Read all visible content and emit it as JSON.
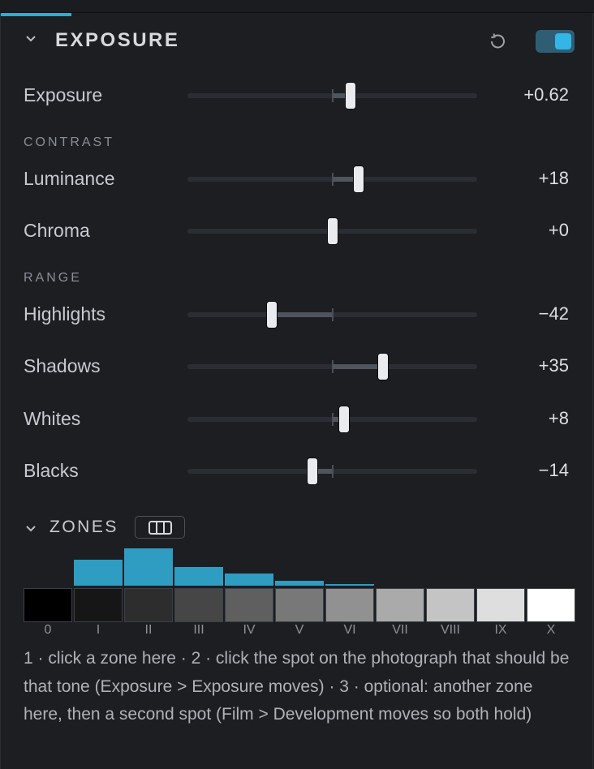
{
  "header": {
    "title": "EXPOSURE",
    "reset_icon": "reset-icon",
    "toggle_on": true,
    "accent": "#33b6e6"
  },
  "groups": {
    "contrast": "CONTRAST",
    "range": "RANGE"
  },
  "sliders": {
    "exposure": {
      "label": "Exposure",
      "value": "+0.62",
      "position": 0.562
    },
    "luminance": {
      "label": "Luminance",
      "value": "+18",
      "position": 0.59
    },
    "chroma": {
      "label": "Chroma",
      "value": "+0",
      "position": 0.5
    },
    "highlights": {
      "label": "Highlights",
      "value": "−42",
      "position": 0.29
    },
    "shadows": {
      "label": "Shadows",
      "value": "+35",
      "position": 0.675
    },
    "whites": {
      "label": "Whites",
      "value": "+8",
      "position": 0.54
    },
    "blacks": {
      "label": "Blacks",
      "value": "−14",
      "position": 0.43
    }
  },
  "zones": {
    "title": "ZONES",
    "labels": [
      "0",
      "I",
      "II",
      "III",
      "IV",
      "V",
      "VI",
      "VII",
      "VIII",
      "IX",
      "X"
    ],
    "swatch_colors": [
      "#000000",
      "#161616",
      "#2d2d2d",
      "#464646",
      "#5f5f5f",
      "#787878",
      "#919191",
      "#aaaaaa",
      "#c4c4c4",
      "#dedede",
      "#ffffff"
    ],
    "histogram": [
      0,
      0.62,
      0.88,
      0.44,
      0.28,
      0.11,
      0.04,
      0,
      0,
      0,
      0
    ]
  },
  "help_text": "1 · click a zone here · 2 · click the spot on the photograph that should be that tone (Exposure > Exposure moves) · 3 · optional: another zone here, then a second spot (Film > Development moves so both hold)"
}
